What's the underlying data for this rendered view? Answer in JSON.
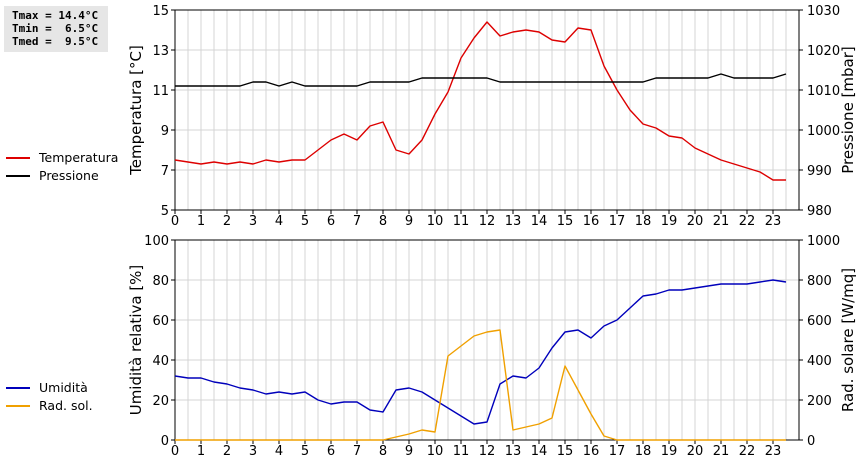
{
  "stats": {
    "tmax": "Tmax = 14.4°C",
    "tmin": "Tmin =  6.5°C",
    "tmed": "Tmed =  9.5°C"
  },
  "colors": {
    "temperature": "#dd0000",
    "pressure": "#000000",
    "humidity": "#0000bb",
    "radiation": "#f0a000",
    "grid": "#d4d4d4"
  },
  "chart_data": [
    {
      "type": "line",
      "xlim": [
        0,
        24
      ],
      "xticks": [
        "0",
        "1",
        "2",
        "3",
        "4",
        "5",
        "6",
        "7",
        "8",
        "9",
        "10",
        "11",
        "12",
        "13",
        "14",
        "15",
        "16",
        "17",
        "18",
        "19",
        "20",
        "21",
        "22",
        "23"
      ],
      "grid": true,
      "left_axis": {
        "label": "Temperatura [°C]",
        "ylim": [
          5,
          15
        ],
        "ticks": [
          "5",
          "7",
          "9",
          "11",
          "13",
          "15"
        ]
      },
      "right_axis": {
        "label": "Pressione [mbar]",
        "ylim": [
          980,
          1030
        ],
        "ticks": [
          "980",
          "990",
          "1000",
          "1010",
          "1020",
          "1030"
        ]
      },
      "series": [
        {
          "name": "Temperatura",
          "axis": "left",
          "x": [
            0,
            0.5,
            1,
            1.5,
            2,
            2.5,
            3,
            3.5,
            4,
            4.5,
            5,
            5.5,
            6,
            6.5,
            7,
            7.5,
            8,
            8.5,
            9,
            9.5,
            10,
            10.5,
            11,
            11.5,
            12,
            12.5,
            13,
            13.5,
            14,
            14.5,
            15,
            15.5,
            16,
            16.5,
            17,
            17.5,
            18,
            18.5,
            19,
            19.5,
            20,
            20.5,
            21,
            21.5,
            22,
            22.5,
            23,
            23.5
          ],
          "y": [
            7.5,
            7.4,
            7.3,
            7.4,
            7.3,
            7.4,
            7.3,
            7.5,
            7.4,
            7.5,
            7.5,
            8.0,
            8.5,
            8.8,
            8.5,
            9.2,
            9.4,
            8.0,
            7.8,
            8.5,
            9.8,
            10.9,
            12.6,
            13.6,
            14.4,
            13.7,
            13.9,
            14.0,
            13.9,
            13.5,
            13.4,
            14.1,
            14.0,
            12.2,
            11.0,
            10.0,
            9.3,
            9.1,
            8.7,
            8.6,
            8.1,
            7.8,
            7.5,
            7.3,
            7.1,
            6.9,
            6.5,
            6.5
          ]
        },
        {
          "name": "Pressione",
          "axis": "right",
          "x": [
            0,
            0.5,
            1,
            1.5,
            2,
            2.5,
            3,
            3.5,
            4,
            4.5,
            5,
            5.5,
            6,
            6.5,
            7,
            7.5,
            8,
            8.5,
            9,
            9.5,
            10,
            10.5,
            11,
            11.5,
            12,
            12.5,
            13,
            13.5,
            14,
            14.5,
            15,
            15.5,
            16,
            16.5,
            17,
            17.5,
            18,
            18.5,
            19,
            19.5,
            20,
            20.5,
            21,
            21.5,
            22,
            22.5,
            23,
            23.5
          ],
          "y": [
            1011,
            1011,
            1011,
            1011,
            1011,
            1011,
            1012,
            1012,
            1011,
            1012,
            1011,
            1011,
            1011,
            1011,
            1011,
            1012,
            1012,
            1012,
            1012,
            1013,
            1013,
            1013,
            1013,
            1013,
            1013,
            1012,
            1012,
            1012,
            1012,
            1012,
            1012,
            1012,
            1012,
            1012,
            1012,
            1012,
            1012,
            1013,
            1013,
            1013,
            1013,
            1013,
            1014,
            1013,
            1013,
            1013,
            1013,
            1014
          ]
        }
      ],
      "legend": [
        "Temperatura",
        "Pressione"
      ]
    },
    {
      "type": "line",
      "xlim": [
        0,
        24
      ],
      "xticks": [
        "0",
        "1",
        "2",
        "3",
        "4",
        "5",
        "6",
        "7",
        "8",
        "9",
        "10",
        "11",
        "12",
        "13",
        "14",
        "15",
        "16",
        "17",
        "18",
        "19",
        "20",
        "21",
        "22",
        "23"
      ],
      "grid": true,
      "left_axis": {
        "label": "Umidità relativa [%]",
        "ylim": [
          0,
          100
        ],
        "ticks": [
          "0",
          "20",
          "40",
          "60",
          "80",
          "100"
        ]
      },
      "right_axis": {
        "label": "Rad. solare [W/mq]",
        "ylim": [
          0,
          1000
        ],
        "ticks": [
          "0",
          "200",
          "400",
          "600",
          "800",
          "1000"
        ]
      },
      "series": [
        {
          "name": "Umidità",
          "axis": "left",
          "x": [
            0,
            0.5,
            1,
            1.5,
            2,
            2.5,
            3,
            3.5,
            4,
            4.5,
            5,
            5.5,
            6,
            6.5,
            7,
            7.5,
            8,
            8.5,
            9,
            9.5,
            10,
            10.5,
            11,
            11.5,
            12,
            12.5,
            13,
            13.5,
            14,
            14.5,
            15,
            15.5,
            16,
            16.5,
            17,
            17.5,
            18,
            18.5,
            19,
            19.5,
            20,
            20.5,
            21,
            21.5,
            22,
            22.5,
            23,
            23.5
          ],
          "y": [
            32,
            31,
            31,
            29,
            28,
            26,
            25,
            23,
            24,
            23,
            24,
            20,
            18,
            19,
            19,
            15,
            14,
            25,
            26,
            24,
            20,
            16,
            12,
            8,
            9,
            28,
            32,
            31,
            36,
            46,
            54,
            55,
            51,
            57,
            60,
            66,
            72,
            73,
            75,
            75,
            76,
            77,
            78,
            78,
            78,
            79,
            80,
            79
          ]
        },
        {
          "name": "Rad. sol.",
          "axis": "right",
          "x": [
            0,
            0.5,
            1,
            1.5,
            2,
            2.5,
            3,
            3.5,
            4,
            4.5,
            5,
            5.5,
            6,
            6.5,
            7,
            7.5,
            8,
            8.5,
            9,
            9.5,
            10,
            10.5,
            11,
            11.5,
            12,
            12.5,
            13,
            13.5,
            14,
            14.5,
            15,
            15.5,
            16,
            16.5,
            17,
            17.5,
            18,
            18.5,
            19,
            19.5,
            20,
            20.5,
            21,
            21.5,
            22,
            22.5,
            23,
            23.5
          ],
          "y": [
            0,
            0,
            0,
            0,
            0,
            0,
            0,
            0,
            0,
            0,
            0,
            0,
            0,
            0,
            0,
            0,
            0,
            15,
            30,
            50,
            40,
            420,
            470,
            520,
            540,
            550,
            50,
            65,
            80,
            110,
            370,
            250,
            130,
            20,
            0,
            0,
            0,
            0,
            0,
            0,
            0,
            0,
            0,
            0,
            0,
            0,
            0,
            0
          ]
        }
      ],
      "legend": [
        "Umidità",
        "Rad. sol."
      ]
    }
  ]
}
